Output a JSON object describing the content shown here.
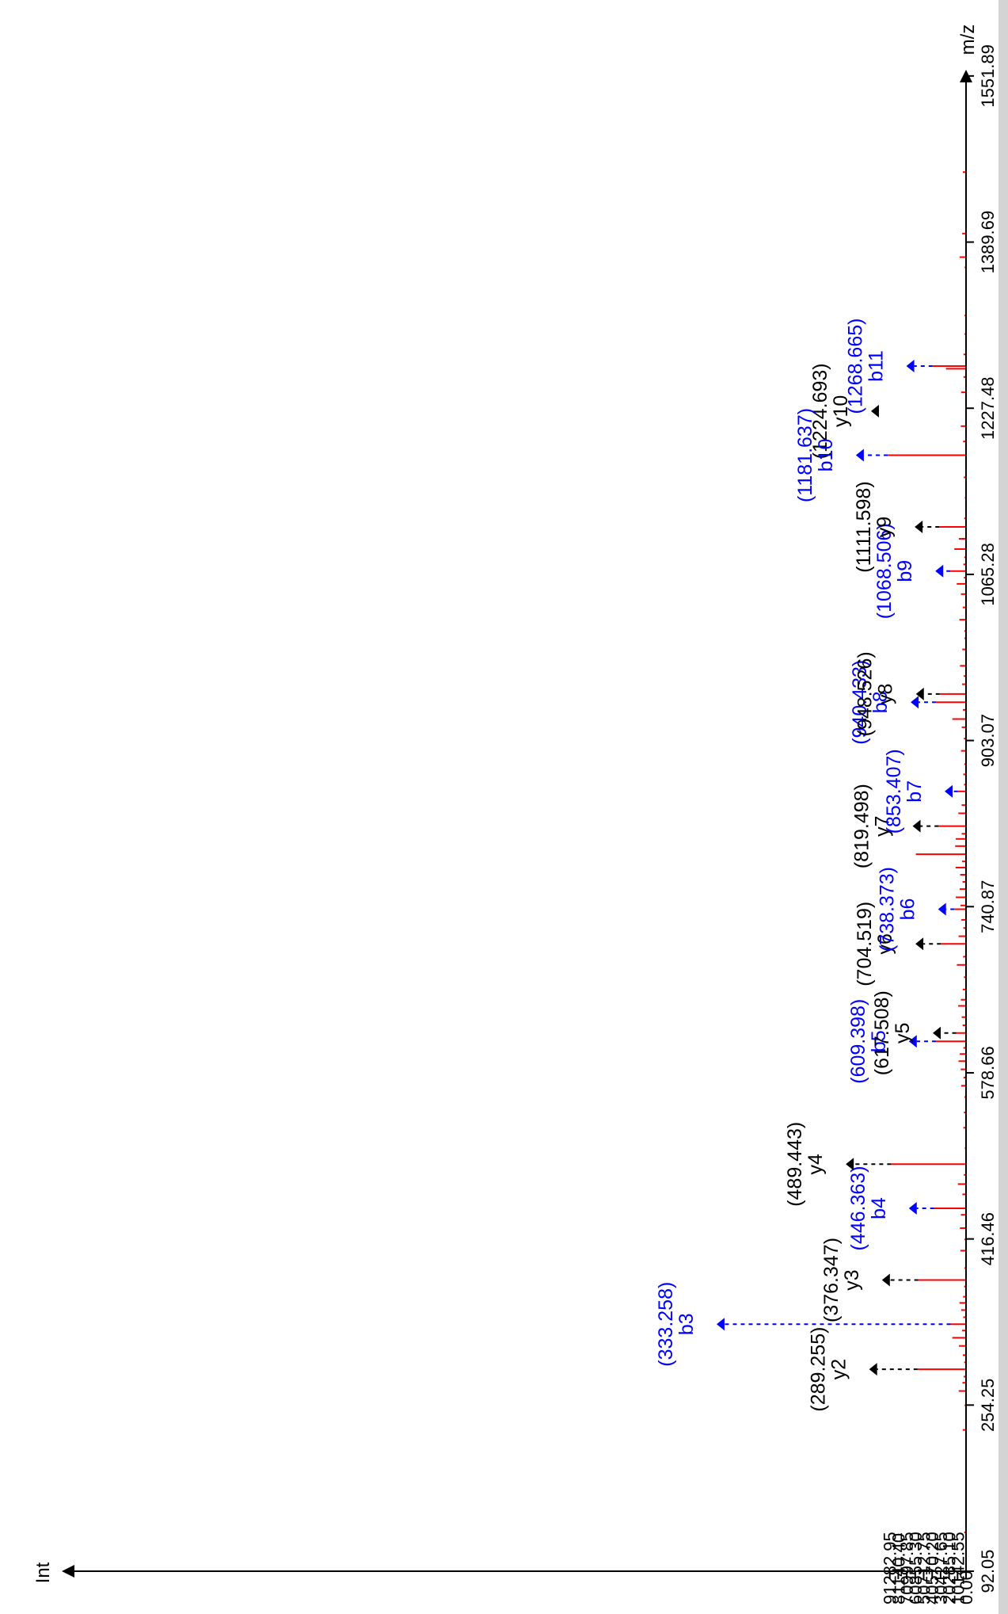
{
  "chart_data": {
    "type": "bar",
    "orientation": "rotated",
    "x_axis": {
      "label": "m/z",
      "ticks": [
        "92.05",
        "254.25",
        "416.46",
        "578.66",
        "740.87",
        "903.07",
        "1065.28",
        "1227.48",
        "1389.69",
        "1551.89"
      ],
      "range": [
        92.05,
        1700
      ]
    },
    "y_axis": {
      "label": "Int",
      "ticks": [
        "0.00",
        "10142.55",
        "20285.10",
        "30427.65",
        "40570.20",
        "50712.75",
        "60855.30",
        "70997.85",
        "81140.40",
        "91282.95"
      ],
      "range": [
        0,
        101425
      ]
    },
    "colors": {
      "peaks": "#ff0000",
      "b_ion": "#0000ff",
      "y_ion": "#000000",
      "axis": "#000000"
    },
    "annotated_ions": [
      {
        "ion": "y2",
        "mz_label": "(289.255)",
        "mz": 289.255,
        "intensity": 58000,
        "type": "y"
      },
      {
        "ion": "b3",
        "mz_label": "(333.258)",
        "mz": 333.258,
        "intensity": 18500,
        "type": "b"
      },
      {
        "ion": "y3",
        "mz_label": "(376.347)",
        "mz": 376.347,
        "intensity": 57200,
        "type": "y"
      },
      {
        "ion": "b4",
        "mz_label": "(446.363)",
        "mz": 446.363,
        "intensity": 38200,
        "type": "b"
      },
      {
        "ion": "y4",
        "mz_label": "(489.443)",
        "mz": 489.443,
        "intensity": 89700,
        "type": "y"
      },
      {
        "ion": "b5",
        "mz_label": "(609.398)",
        "mz": 609.398,
        "intensity": 36000,
        "type": "b"
      },
      {
        "ion": "y5",
        "mz_label": "(617.508)",
        "mz": 617.508,
        "intensity": 11800,
        "type": "y"
      },
      {
        "ion": "y6",
        "mz_label": "(704.519)",
        "mz": 704.519,
        "intensity": 30100,
        "type": "y"
      },
      {
        "ion": "b6",
        "mz_label": "(738.373)",
        "mz": 738.373,
        "intensity": 14000,
        "type": "b"
      },
      {
        "ion": "y7",
        "mz_label": "(819.498)",
        "mz": 819.498,
        "intensity": 33000,
        "type": "y"
      },
      {
        "ion": "b7",
        "mz_label": "(853.407)",
        "mz": 853.407,
        "intensity": 9800,
        "type": "b"
      },
      {
        "ion": "b8",
        "mz_label": "(940.433)",
        "mz": 940.433,
        "intensity": 36000,
        "type": "b"
      },
      {
        "ion": "y8",
        "mz_label": "(948.526)",
        "mz": 948.526,
        "intensity": 31500,
        "type": "y"
      },
      {
        "ion": "b9",
        "mz_label": "(1068.506)",
        "mz": 1068.506,
        "intensity": 18800,
        "type": "b"
      },
      {
        "ion": "y9",
        "mz_label": "(1111.598)",
        "mz": 1111.598,
        "intensity": 32000,
        "type": "y"
      },
      {
        "ion": "y10",
        "mz_label": "(1224.693)",
        "mz": 1224.693,
        "intensity": 800,
        "type": "y"
      },
      {
        "ion": "b10",
        "mz_label": "(1181.637)",
        "mz": 1181.637,
        "intensity": 93800,
        "type": "b"
      },
      {
        "ion": "b11",
        "mz_label": "(1268.665)",
        "mz": 1268.665,
        "intensity": 40000,
        "type": "b"
      }
    ],
    "peaks": [
      [
        104,
        1000
      ],
      [
        130,
        2200
      ],
      [
        230,
        4000
      ],
      [
        254,
        1700
      ],
      [
        268,
        8800
      ],
      [
        276,
        4300
      ],
      [
        282,
        2800
      ],
      [
        289.255,
        58000
      ],
      [
        296,
        2200
      ],
      [
        303,
        3800
      ],
      [
        312,
        8500
      ],
      [
        320,
        16500
      ],
      [
        327,
        4800
      ],
      [
        333.258,
        18500
      ],
      [
        340,
        3300
      ],
      [
        347,
        5800
      ],
      [
        354,
        7800
      ],
      [
        360,
        3500
      ],
      [
        370,
        2200
      ],
      [
        376.347,
        57200
      ],
      [
        388,
        1800
      ],
      [
        405,
        6800
      ],
      [
        416,
        1800
      ],
      [
        427,
        7300
      ],
      [
        440,
        6200
      ],
      [
        446.363,
        38200
      ],
      [
        460,
        4400
      ],
      [
        470,
        9800
      ],
      [
        479,
        2700
      ],
      [
        489.443,
        89700
      ],
      [
        505,
        1500
      ],
      [
        525,
        3200
      ],
      [
        540,
        2500
      ],
      [
        555,
        1800
      ],
      [
        566,
        5800
      ],
      [
        574,
        3000
      ],
      [
        582,
        6400
      ],
      [
        590,
        9000
      ],
      [
        597,
        7500
      ],
      [
        603,
        3100
      ],
      [
        609.398,
        36000
      ],
      [
        617.508,
        11800
      ],
      [
        625,
        4100
      ],
      [
        633,
        5200
      ],
      [
        644,
        9400
      ],
      [
        650,
        6200
      ],
      [
        660,
        4000
      ],
      [
        672,
        2500
      ],
      [
        684,
        11000
      ],
      [
        692,
        3500
      ],
      [
        704.519,
        30100
      ],
      [
        712,
        8900
      ],
      [
        720,
        3200
      ],
      [
        728,
        5600
      ],
      [
        738.373,
        14000
      ],
      [
        742,
        6700
      ],
      [
        750,
        12300
      ],
      [
        758,
        7600
      ],
      [
        765,
        4200
      ],
      [
        772,
        7000
      ],
      [
        779,
        12500
      ],
      [
        785,
        4800
      ],
      [
        792,
        60100
      ],
      [
        800,
        13000
      ],
      [
        807,
        12300
      ],
      [
        812,
        5200
      ],
      [
        819.498,
        33000
      ],
      [
        832,
        9200
      ],
      [
        840,
        5300
      ],
      [
        853.407,
        9800
      ],
      [
        860,
        2400
      ],
      [
        870,
        3300
      ],
      [
        880,
        2000
      ],
      [
        893,
        6000
      ],
      [
        905,
        2600
      ],
      [
        916,
        5100
      ],
      [
        924,
        16400
      ],
      [
        933,
        3700
      ],
      [
        940.433,
        36000
      ],
      [
        948.526,
        31500
      ],
      [
        958,
        4700
      ],
      [
        966,
        2800
      ],
      [
        976,
        7200
      ],
      [
        992,
        4500
      ],
      [
        1003,
        1800
      ],
      [
        1010,
        2000
      ],
      [
        1021,
        8000
      ],
      [
        1033,
        4000
      ],
      [
        1046,
        6100
      ],
      [
        1056,
        11100
      ],
      [
        1062,
        2600
      ],
      [
        1068.506,
        18800
      ],
      [
        1075,
        3200
      ],
      [
        1082,
        2000
      ],
      [
        1090,
        14000
      ],
      [
        1100,
        8600
      ],
      [
        1111.598,
        32000
      ],
      [
        1120,
        2100
      ],
      [
        1140,
        1400
      ],
      [
        1160,
        2700
      ],
      [
        1181.637,
        93800
      ],
      [
        1195,
        3500
      ],
      [
        1210,
        6300
      ],
      [
        1225,
        800
      ],
      [
        1243,
        5800
      ],
      [
        1258,
        3000
      ],
      [
        1266,
        24000
      ],
      [
        1268.665,
        40000
      ],
      [
        1280,
        3000
      ],
      [
        1300,
        1700
      ],
      [
        1318,
        1800
      ],
      [
        1365,
        1600
      ],
      [
        1375,
        7600
      ],
      [
        1398,
        4600
      ],
      [
        1458,
        3800
      ]
    ]
  }
}
